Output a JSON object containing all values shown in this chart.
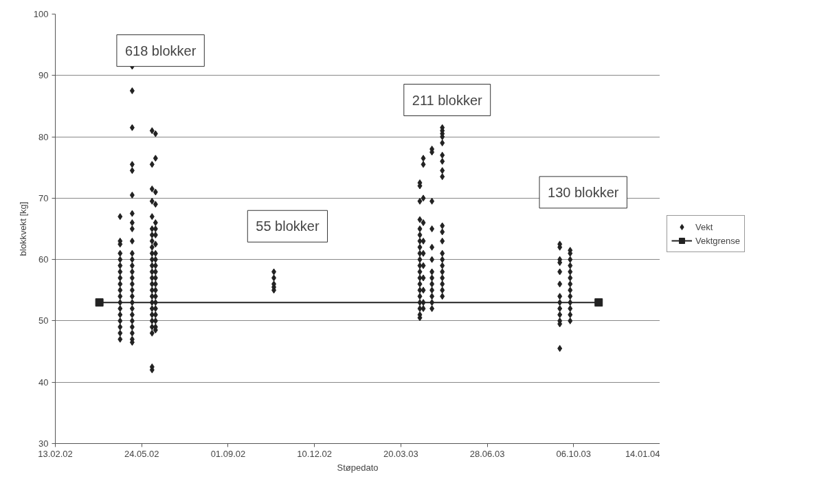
{
  "chart_data": {
    "type": "scatter",
    "xlabel": "Støpedato",
    "ylabel": "blokkvekt [kg]",
    "xlim": [
      "2002-02-13",
      "2004-01-14"
    ],
    "ylim": [
      30,
      100
    ],
    "xticks": [
      {
        "value": "2002-02-13",
        "label": "13.02.02"
      },
      {
        "value": "2002-05-24",
        "label": "24.05.02"
      },
      {
        "value": "2002-09-01",
        "label": "01.09.02"
      },
      {
        "value": "2002-12-10",
        "label": "10.12.02"
      },
      {
        "value": "2003-03-20",
        "label": "20.03.03"
      },
      {
        "value": "2003-06-28",
        "label": "28.06.03"
      },
      {
        "value": "2003-10-06",
        "label": "06.10.03"
      },
      {
        "value": "2004-01-14",
        "label": "14.01.04"
      }
    ],
    "yticks": [
      30,
      40,
      50,
      60,
      70,
      80,
      90,
      100
    ],
    "grid": "y",
    "legend": "right",
    "series": [
      {
        "name": "Vekt",
        "marker": "diamond",
        "color": "#222222",
        "x": [
          "2002-04-29",
          "2002-04-29",
          "2002-04-29",
          "2002-04-29",
          "2002-04-29",
          "2002-04-29",
          "2002-04-29",
          "2002-04-29",
          "2002-04-29",
          "2002-04-29",
          "2002-04-29",
          "2002-04-29",
          "2002-04-29",
          "2002-04-29",
          "2002-04-29",
          "2002-04-29",
          "2002-04-29",
          "2002-04-29",
          "2002-05-13",
          "2002-05-13",
          "2002-05-13",
          "2002-05-13",
          "2002-05-13",
          "2002-05-13",
          "2002-05-13",
          "2002-05-13",
          "2002-05-13",
          "2002-05-13",
          "2002-05-13",
          "2002-05-13",
          "2002-05-13",
          "2002-05-13",
          "2002-05-13",
          "2002-05-13",
          "2002-05-13",
          "2002-05-13",
          "2002-05-13",
          "2002-05-13",
          "2002-05-13",
          "2002-05-13",
          "2002-05-13",
          "2002-05-13",
          "2002-05-13",
          "2002-05-13",
          "2002-06-05",
          "2002-06-05",
          "2002-06-05",
          "2002-06-05",
          "2002-06-05",
          "2002-06-05",
          "2002-06-05",
          "2002-06-05",
          "2002-06-05",
          "2002-06-05",
          "2002-06-05",
          "2002-06-05",
          "2002-06-05",
          "2002-06-05",
          "2002-06-05",
          "2002-06-05",
          "2002-06-05",
          "2002-06-05",
          "2002-06-05",
          "2002-06-05",
          "2002-06-05",
          "2002-06-05",
          "2002-06-05",
          "2002-06-05",
          "2002-06-05",
          "2002-06-09",
          "2002-06-09",
          "2002-06-09",
          "2002-06-09",
          "2002-06-09",
          "2002-06-09",
          "2002-06-09",
          "2002-06-09",
          "2002-06-09",
          "2002-06-09",
          "2002-06-09",
          "2002-06-09",
          "2002-06-09",
          "2002-06-09",
          "2002-06-09",
          "2002-06-09",
          "2002-06-09",
          "2002-06-09",
          "2002-06-09",
          "2002-06-09",
          "2002-06-09",
          "2002-06-09",
          "2002-10-24",
          "2002-10-24",
          "2002-10-24",
          "2002-10-24",
          "2002-10-24",
          "2003-04-11",
          "2003-04-11",
          "2003-04-11",
          "2003-04-11",
          "2003-04-11",
          "2003-04-11",
          "2003-04-11",
          "2003-04-11",
          "2003-04-11",
          "2003-04-11",
          "2003-04-11",
          "2003-04-11",
          "2003-04-11",
          "2003-04-11",
          "2003-04-11",
          "2003-04-11",
          "2003-04-11",
          "2003-04-11",
          "2003-04-11",
          "2003-04-11",
          "2003-04-15",
          "2003-04-15",
          "2003-04-15",
          "2003-04-15",
          "2003-04-15",
          "2003-04-15",
          "2003-04-15",
          "2003-04-15",
          "2003-04-15",
          "2003-04-15",
          "2003-04-15",
          "2003-04-25",
          "2003-04-25",
          "2003-04-25",
          "2003-04-25",
          "2003-04-25",
          "2003-04-25",
          "2003-04-25",
          "2003-04-25",
          "2003-04-25",
          "2003-04-25",
          "2003-04-25",
          "2003-04-25",
          "2003-04-25",
          "2003-05-07",
          "2003-05-07",
          "2003-05-07",
          "2003-05-07",
          "2003-05-07",
          "2003-05-07",
          "2003-05-07",
          "2003-05-07",
          "2003-05-07",
          "2003-05-07",
          "2003-05-07",
          "2003-05-07",
          "2003-05-07",
          "2003-05-07",
          "2003-05-07",
          "2003-05-07",
          "2003-05-07",
          "2003-05-07",
          "2003-05-07",
          "2003-05-07",
          "2003-09-20",
          "2003-09-20",
          "2003-09-20",
          "2003-09-20",
          "2003-09-20",
          "2003-09-20",
          "2003-09-20",
          "2003-09-20",
          "2003-09-20",
          "2003-09-20",
          "2003-09-20",
          "2003-09-20",
          "2003-09-20",
          "2003-10-02",
          "2003-10-02",
          "2003-10-02",
          "2003-10-02",
          "2003-10-02",
          "2003-10-02",
          "2003-10-02",
          "2003-10-02",
          "2003-10-02",
          "2003-10-02",
          "2003-10-02",
          "2003-10-02",
          "2003-10-02"
        ],
        "values": [
          67,
          63,
          62.5,
          61,
          60,
          59,
          58,
          57,
          56,
          55,
          54,
          53,
          52,
          51,
          50,
          49,
          48,
          47,
          91.5,
          87.5,
          81.5,
          75.5,
          74.5,
          70.5,
          67.5,
          66,
          65,
          63,
          61,
          60,
          59,
          58,
          57,
          56,
          55,
          54,
          53,
          52,
          51,
          50,
          49,
          48,
          47,
          46.5,
          81,
          75.5,
          71.5,
          69.5,
          67,
          65,
          64,
          63,
          62,
          61,
          60,
          59,
          58,
          57,
          56,
          55,
          54,
          53,
          52,
          51,
          50,
          49,
          48,
          42.5,
          42,
          80.5,
          76.5,
          71,
          69,
          66,
          65,
          64,
          62.5,
          61,
          60,
          59,
          58,
          57,
          56,
          55,
          54,
          53,
          52,
          51,
          50,
          49,
          48.5,
          58,
          57,
          56,
          55.5,
          55,
          72.5,
          72,
          69.5,
          66.5,
          65,
          64,
          63,
          62,
          61,
          60,
          59,
          58,
          57,
          56,
          55,
          54,
          53,
          52,
          51,
          50.5,
          76.5,
          75.5,
          70,
          66,
          63,
          61,
          59,
          57,
          55,
          53,
          52,
          78,
          77.5,
          69.5,
          65,
          62,
          60,
          58,
          57,
          56,
          55,
          54,
          53,
          52,
          81.5,
          81,
          80.5,
          80,
          79,
          77,
          76,
          74.5,
          73.5,
          65.5,
          64.5,
          63,
          61,
          60,
          59,
          58,
          57,
          56,
          55,
          54,
          62.5,
          62,
          60,
          59.5,
          58,
          56,
          54,
          53,
          52,
          51,
          50,
          49.5,
          45.5,
          61.5,
          61,
          60,
          59,
          58,
          57,
          56,
          55,
          54,
          53,
          52,
          51,
          50
        ]
      },
      {
        "name": "Vektgrense",
        "type": "line",
        "marker": "square",
        "color": "#222222",
        "x": [
          "2002-04-05",
          "2003-11-04"
        ],
        "values": [
          53,
          53
        ]
      }
    ],
    "annotations": [
      "618 blokker",
      "211 blokker",
      "55 blokker",
      "130 blokker"
    ]
  }
}
